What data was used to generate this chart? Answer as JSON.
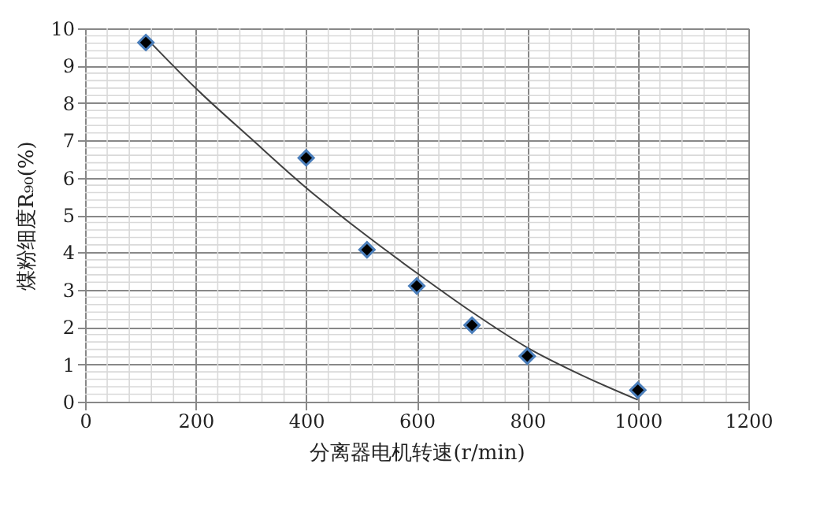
{
  "chart_data": {
    "type": "scatter",
    "xlabel": "分离器电机转速(r/min)",
    "ylabel": "煤粉细度R₉₀(%)",
    "xlim": [
      0,
      1200
    ],
    "xticks": [
      0,
      200,
      400,
      600,
      800,
      1000,
      1200
    ],
    "ylim": [
      0,
      10
    ],
    "yticks": [
      0,
      1,
      2,
      3,
      4,
      5,
      6,
      7,
      8,
      9,
      10
    ],
    "grid": true,
    "series": [
      {
        "marker": "diamond",
        "color": "#000000",
        "x": [
          110,
          400,
          510,
          600,
          700,
          800,
          1000
        ],
        "values": [
          9.62,
          6.53,
          4.07,
          3.1,
          2.05,
          1.22,
          0.31
        ]
      },
      {
        "type": "line",
        "marker": "none",
        "line_style": "solid",
        "color": "#404040",
        "x": [
          110,
          200,
          300,
          400,
          500,
          600,
          700,
          800,
          900,
          1000
        ],
        "values": [
          9.75,
          8.4,
          7.05,
          5.73,
          4.55,
          3.45,
          2.4,
          1.45,
          0.7,
          0.05
        ]
      }
    ]
  }
}
